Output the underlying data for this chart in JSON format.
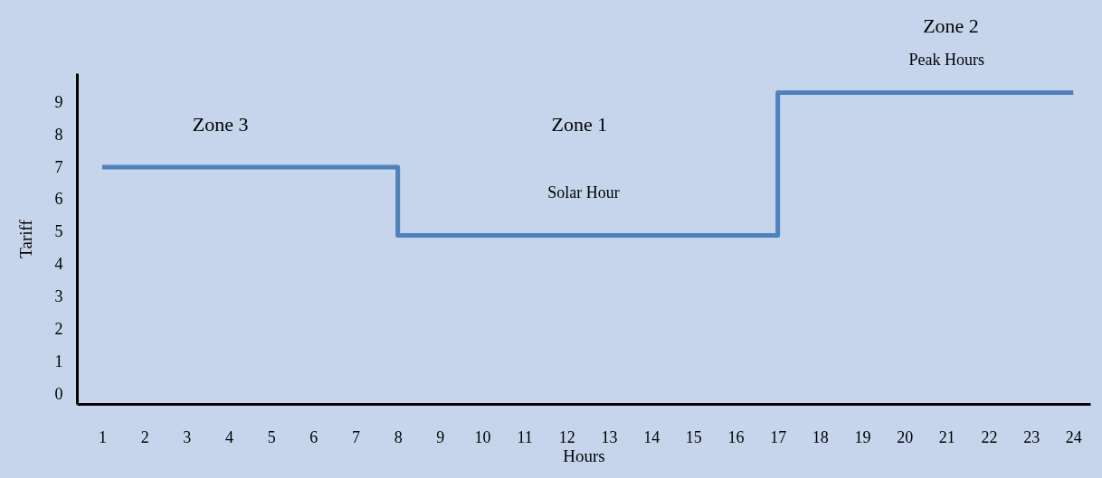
{
  "chart_data": {
    "type": "step",
    "xlabel": "Hours",
    "ylabel": "Tariff",
    "x": [
      1,
      8,
      17,
      24
    ],
    "series": [
      {
        "color": "#4f81bd",
        "values": [
          7,
          4.9,
          9.3,
          9.3
        ]
      }
    ],
    "xlim": [
      0.4,
      24.4
    ],
    "xticks": [
      1,
      2,
      3,
      4,
      5,
      6,
      7,
      8,
      9,
      10,
      11,
      12,
      13,
      14,
      15,
      16,
      17,
      18,
      19,
      20,
      21,
      22,
      23,
      24
    ],
    "ylim": [
      -0.3,
      9.9
    ],
    "yticks": [
      0,
      1,
      2,
      3,
      4,
      5,
      6,
      7,
      8,
      9
    ],
    "grid": false,
    "legend": false,
    "annotations": [
      "Zone 3",
      "Zone 1",
      "Solar Hour",
      "Zone 2",
      "Peak Hours"
    ]
  }
}
